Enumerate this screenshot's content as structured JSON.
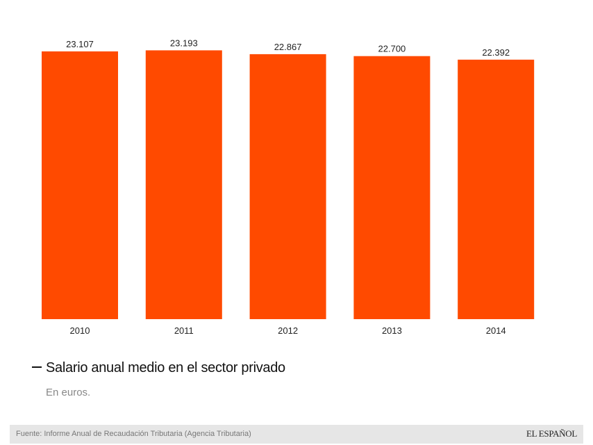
{
  "chart_data": {
    "type": "bar",
    "title": "Salario anual medio en el sector privado",
    "subtitle": "En euros.",
    "categories": [
      "2010",
      "2011",
      "2012",
      "2013",
      "2014"
    ],
    "values": [
      23107,
      23193,
      22867,
      22700,
      22392
    ],
    "value_labels": [
      "23.107",
      "23.193",
      "22.867",
      "22.700",
      "22.392"
    ],
    "xlabel": "",
    "ylabel": "",
    "ylim": [
      0,
      24000
    ],
    "grid": false,
    "legend": "none",
    "bar_color": "#ff4a00"
  },
  "header": {
    "title": "Salario anual medio en el sector privado",
    "subtitle": "En euros."
  },
  "footer": {
    "source": "Fuente: Informe Anual de Recaudación Tributaria (Agencia Tributaria)",
    "brand": "EL ESPAÑOL"
  }
}
